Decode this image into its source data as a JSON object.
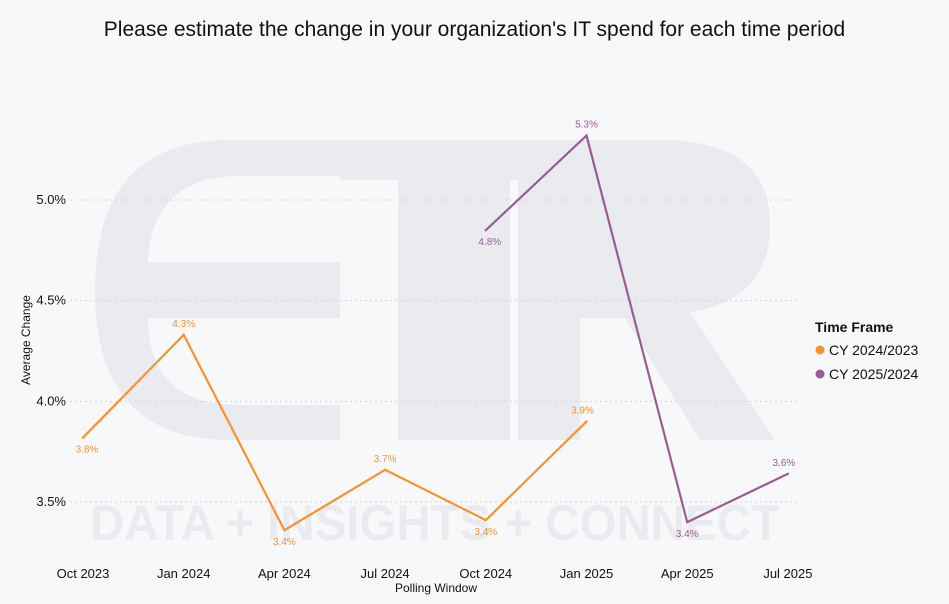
{
  "chart_data": {
    "type": "line",
    "title": "Please estimate the change in your organization's IT spend for each time period",
    "xlabel": "Polling Window",
    "ylabel": "Average Change",
    "categories": [
      "Oct 2023",
      "Jan 2024",
      "Apr 2024",
      "Jul 2024",
      "Oct 2024",
      "Jan 2025",
      "Apr 2025",
      "Jul 2025"
    ],
    "yticks": [
      {
        "value": 3.5,
        "label": "3.5%"
      },
      {
        "value": 4.0,
        "label": "4.0%"
      },
      {
        "value": 4.5,
        "label": "4.5%"
      },
      {
        "value": 5.0,
        "label": "5.0%"
      }
    ],
    "ylim": [
      3.2,
      5.35
    ],
    "grid": true,
    "legend": {
      "title": "Time Frame",
      "placement": "right"
    },
    "series": [
      {
        "name": "CY 2024/2023",
        "color": "#f7922e",
        "points": [
          {
            "x": "Oct 2023",
            "y": 3.82,
            "label": "3.8%"
          },
          {
            "x": "Jan 2024",
            "y": 4.33,
            "label": "4.3%"
          },
          {
            "x": "Apr 2024",
            "y": 3.36,
            "label": "3.4%"
          },
          {
            "x": "Jul 2024",
            "y": 3.66,
            "label": "3.7%"
          },
          {
            "x": "Oct 2024",
            "y": 3.41,
            "label": "3.4%"
          },
          {
            "x": "Jan 2025",
            "y": 3.9,
            "label": "3.9%"
          }
        ]
      },
      {
        "name": "CY 2025/2024",
        "color": "#9b5c93",
        "points": [
          {
            "x": "Oct 2024",
            "y": 4.85,
            "label": "4.8%"
          },
          {
            "x": "Jan 2025",
            "y": 5.32,
            "label": "5.3%"
          },
          {
            "x": "Apr 2025",
            "y": 3.4,
            "label": "3.4%"
          },
          {
            "x": "Jul 2025",
            "y": 3.64,
            "label": "3.6%"
          }
        ]
      }
    ]
  },
  "watermark": {
    "logo": "ETR",
    "tagline": "DATA + INSIGHTS + CONNECT"
  }
}
